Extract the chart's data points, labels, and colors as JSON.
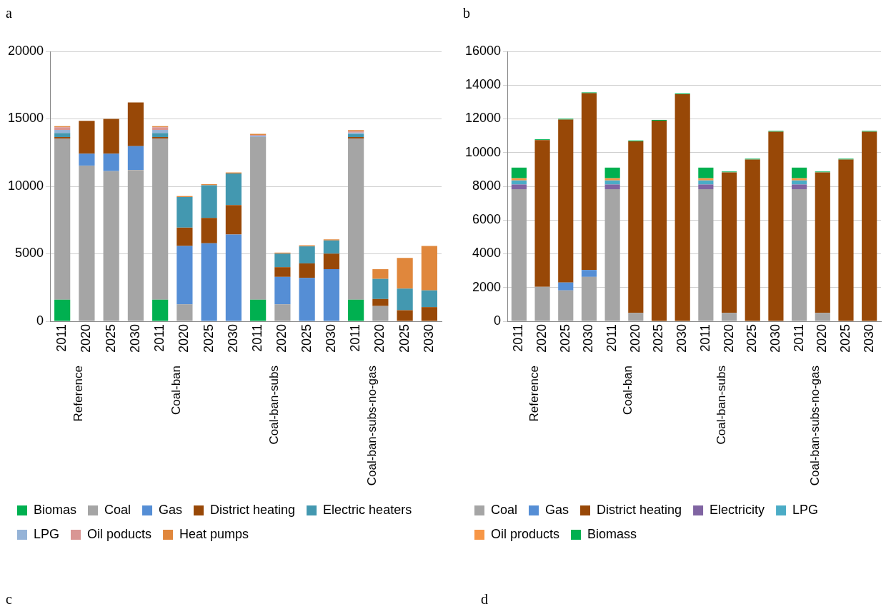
{
  "chart_data": [
    {
      "type": "bar",
      "title": "a",
      "stacked": true,
      "grid": "y",
      "legend": "bottom",
      "categories": [
        "2011",
        "2020",
        "2025",
        "2030",
        "2011",
        "2020",
        "2025",
        "2030",
        "2011",
        "2020",
        "2025",
        "2030",
        "2011",
        "2020",
        "2025",
        "2030"
      ],
      "annotations": [
        "Reference",
        "Coal-ban",
        "Coal-ban-subs",
        "Coal-ban-subs-no-gas"
      ],
      "ylim": [
        0,
        20000
      ],
      "yticks": [
        0,
        5000,
        10000,
        15000,
        20000
      ],
      "series": [
        {
          "name": "Biomas",
          "color": "#00b050",
          "values": [
            1600,
            null,
            null,
            null,
            1600,
            null,
            null,
            null,
            1600,
            null,
            null,
            null,
            1600,
            null,
            null,
            null
          ]
        },
        {
          "name": "Coal",
          "color": "#a5a5a5",
          "values": [
            11950,
            11540,
            11130,
            11210,
            11950,
            1260,
            null,
            null,
            12050,
            1260,
            null,
            null,
            11950,
            1130,
            null,
            null
          ]
        },
        {
          "name": "Gas",
          "color": "#558ed5",
          "values": [
            null,
            880,
            1290,
            1770,
            null,
            4320,
            5780,
            6430,
            null,
            2030,
            3210,
            3860,
            null,
            null,
            null,
            null
          ]
        },
        {
          "name": "District heating",
          "color": "#984807",
          "values": [
            100,
            2440,
            2580,
            3240,
            100,
            1360,
            1880,
            2180,
            null,
            720,
            1080,
            1150,
            100,
            520,
            820,
            1050
          ]
        },
        {
          "name": "Electric heaters",
          "color": "#4398b0",
          "values": [
            300,
            null,
            null,
            null,
            300,
            2260,
            2420,
            2340,
            null,
            1000,
            1260,
            980,
            230,
            1490,
            1600,
            1240
          ]
        },
        {
          "name": "LPG",
          "color": "#95b3d7",
          "values": [
            230,
            null,
            null,
            null,
            230,
            null,
            null,
            null,
            100,
            null,
            null,
            null,
            100,
            null,
            null,
            null
          ]
        },
        {
          "name": "Oil poducts",
          "color": "#d99694",
          "values": [
            200,
            null,
            null,
            null,
            200,
            null,
            null,
            null,
            60,
            null,
            null,
            null,
            110,
            null,
            null,
            null
          ]
        },
        {
          "name": "Heat pumps",
          "color": "#e0873c",
          "values": [
            80,
            null,
            null,
            null,
            80,
            80,
            80,
            80,
            80,
            80,
            80,
            80,
            80,
            720,
            2280,
            3290
          ]
        }
      ]
    },
    {
      "type": "bar",
      "title": "b",
      "stacked": true,
      "grid": "y",
      "legend": "bottom",
      "categories": [
        "2011",
        "2020",
        "2025",
        "2030",
        "2011",
        "2020",
        "2025",
        "2030",
        "2011",
        "2020",
        "2025",
        "2030",
        "2011",
        "2020",
        "2025",
        "2030"
      ],
      "annotations": [
        "Reference",
        "Coal-ban",
        "Coal-ban-subs",
        "Coal-ban-subs-no-gas"
      ],
      "ylim": [
        0,
        16000
      ],
      "yticks": [
        0,
        2000,
        4000,
        6000,
        8000,
        10000,
        12000,
        14000,
        16000
      ],
      "series": [
        {
          "name": "Coal",
          "color": "#a5a5a5",
          "values": [
            7830,
            2040,
            1830,
            2630,
            7830,
            500,
            null,
            null,
            7830,
            500,
            null,
            null,
            7830,
            500,
            null,
            null
          ]
        },
        {
          "name": "Gas",
          "color": "#558ed5",
          "values": [
            null,
            null,
            470,
            410,
            null,
            null,
            null,
            null,
            null,
            null,
            null,
            null,
            null,
            null,
            null,
            null
          ]
        },
        {
          "name": "District heating",
          "color": "#984807",
          "values": [
            null,
            8700,
            9660,
            10480,
            null,
            10170,
            11890,
            13460,
            null,
            8330,
            9590,
            11240,
            null,
            8330,
            9590,
            11240
          ]
        },
        {
          "name": "Electricity",
          "color": "#8064a2",
          "values": [
            280,
            null,
            null,
            null,
            280,
            null,
            null,
            null,
            280,
            null,
            null,
            null,
            280,
            null,
            null,
            null
          ]
        },
        {
          "name": "LPG",
          "color": "#4bacc6",
          "values": [
            240,
            null,
            null,
            null,
            240,
            null,
            null,
            null,
            240,
            null,
            null,
            null,
            240,
            null,
            null,
            null
          ]
        },
        {
          "name": "Oil products",
          "color": "#f79646",
          "values": [
            130,
            null,
            null,
            null,
            130,
            null,
            null,
            null,
            130,
            null,
            null,
            null,
            130,
            null,
            null,
            null
          ]
        },
        {
          "name": "Biomass",
          "color": "#00b050",
          "values": [
            630,
            50,
            50,
            50,
            630,
            50,
            50,
            50,
            630,
            50,
            50,
            50,
            630,
            50,
            50,
            50
          ]
        }
      ]
    },
    {
      "type": "other",
      "title": "c"
    },
    {
      "type": "other",
      "title": "d"
    }
  ]
}
